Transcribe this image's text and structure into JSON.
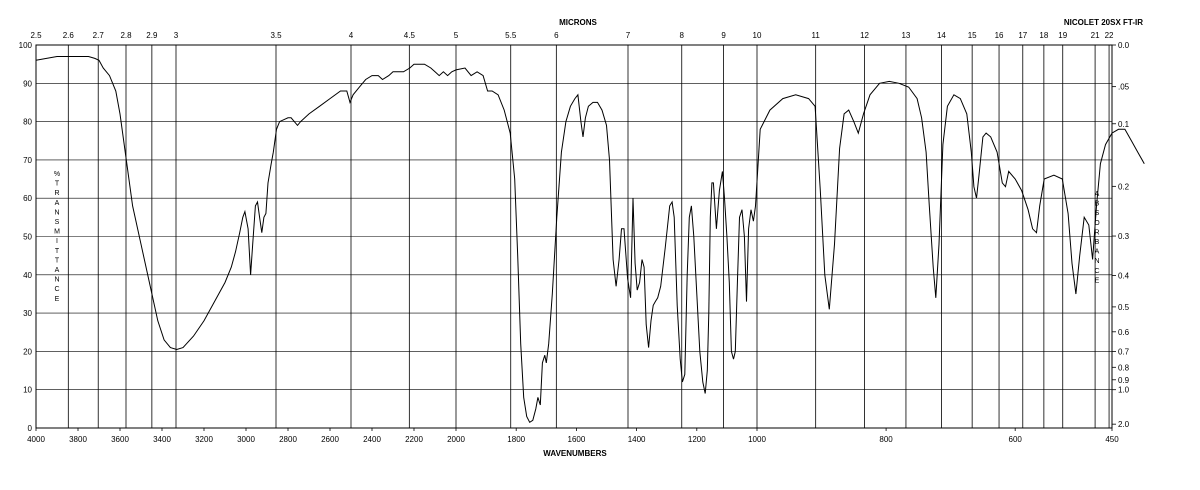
{
  "chart_data": {
    "type": "line",
    "title": "MICRONS",
    "instrument": "NICOLET 20SX FT-IR",
    "xlabel": "WAVENUMBERS",
    "ylabel_left": "%TRANSMITTANCE",
    "ylabel_right": "ABSORBANCE",
    "xlim": [
      4000,
      450
    ],
    "ylim": [
      0,
      100
    ],
    "grid": true,
    "x_ticks": [
      4000,
      3800,
      3600,
      3400,
      3200,
      3000,
      2800,
      2600,
      2400,
      2200,
      2000,
      1800,
      1600,
      1400,
      1200,
      1000,
      800,
      600,
      450
    ],
    "x_tick_labels": [
      "4000",
      "3800",
      "3600",
      "3400",
      "3200",
      "3000",
      "2800",
      "2600",
      "2400",
      "2200",
      "2000",
      "1800",
      "1600",
      "1400",
      "1200",
      "1000",
      "800",
      "600",
      "450"
    ],
    "y_ticks": [
      0,
      10,
      20,
      30,
      40,
      50,
      60,
      70,
      80,
      90,
      100
    ],
    "y_tick_labels": [
      "0",
      "10",
      "20",
      "30",
      "40",
      "50",
      "60",
      "70",
      "80",
      "90",
      "100"
    ],
    "micron_ticks": [
      {
        "um": 2.5,
        "label": "2.5"
      },
      {
        "um": 2.6,
        "label": "2.6"
      },
      {
        "um": 2.7,
        "label": "2.7"
      },
      {
        "um": 2.8,
        "label": "2.8"
      },
      {
        "um": 2.9,
        "label": "2.9"
      },
      {
        "um": 3.0,
        "label": "3"
      },
      {
        "um": 3.5,
        "label": "3.5"
      },
      {
        "um": 4.0,
        "label": "4"
      },
      {
        "um": 4.5,
        "label": "4.5"
      },
      {
        "um": 5.0,
        "label": "5"
      },
      {
        "um": 5.5,
        "label": "5.5"
      },
      {
        "um": 6.0,
        "label": "6"
      },
      {
        "um": 7.0,
        "label": "7"
      },
      {
        "um": 8.0,
        "label": "8"
      },
      {
        "um": 9.0,
        "label": "9"
      },
      {
        "um": 10.0,
        "label": "10"
      },
      {
        "um": 11.0,
        "label": "11"
      },
      {
        "um": 12.0,
        "label": "12"
      },
      {
        "um": 13.0,
        "label": "13"
      },
      {
        "um": 14.0,
        "label": "14"
      },
      {
        "um": 15.0,
        "label": "15"
      },
      {
        "um": 16.0,
        "label": "16"
      },
      {
        "um": 17.0,
        "label": "17"
      },
      {
        "um": 18.0,
        "label": "18"
      },
      {
        "um": 19.0,
        "label": "19"
      },
      {
        "um": 21.0,
        "label": "21"
      },
      {
        "um": 22.0,
        "label": "22"
      }
    ],
    "absorbance_ticks": [
      {
        "a": 0.0,
        "label": "0.0"
      },
      {
        "a": 0.05,
        "label": ".05"
      },
      {
        "a": 0.1,
        "label": "0.1"
      },
      {
        "a": 0.2,
        "label": "0.2"
      },
      {
        "a": 0.3,
        "label": "0.3"
      },
      {
        "a": 0.4,
        "label": "0.4"
      },
      {
        "a": 0.5,
        "label": "0.5"
      },
      {
        "a": 0.6,
        "label": "0.6"
      },
      {
        "a": 0.7,
        "label": "0.7"
      },
      {
        "a": 0.8,
        "label": "0.8"
      },
      {
        "a": 0.9,
        "label": "0.9"
      },
      {
        "a": 1.0,
        "label": "1.0"
      },
      {
        "a": 2.0,
        "label": "2.0"
      }
    ],
    "series": [
      {
        "points": [
          [
            4000,
            96
          ],
          [
            3950,
            96.5
          ],
          [
            3900,
            97
          ],
          [
            3850,
            97
          ],
          [
            3800,
            97
          ],
          [
            3750,
            97
          ],
          [
            3720,
            96.5
          ],
          [
            3700,
            96
          ],
          [
            3680,
            94
          ],
          [
            3650,
            92
          ],
          [
            3620,
            88
          ],
          [
            3600,
            82
          ],
          [
            3570,
            70
          ],
          [
            3540,
            58
          ],
          [
            3500,
            48
          ],
          [
            3460,
            38
          ],
          [
            3420,
            28
          ],
          [
            3390,
            23
          ],
          [
            3360,
            21
          ],
          [
            3330,
            20.5
          ],
          [
            3300,
            21
          ],
          [
            3250,
            24
          ],
          [
            3200,
            28
          ],
          [
            3150,
            33
          ],
          [
            3100,
            38
          ],
          [
            3070,
            42
          ],
          [
            3050,
            46
          ],
          [
            3030,
            51
          ],
          [
            3015,
            55
          ],
          [
            3005,
            56.5
          ],
          [
            2990,
            52
          ],
          [
            2978,
            40
          ],
          [
            2968,
            48
          ],
          [
            2955,
            58
          ],
          [
            2945,
            59
          ],
          [
            2935,
            55
          ],
          [
            2925,
            51
          ],
          [
            2915,
            55
          ],
          [
            2905,
            56
          ],
          [
            2895,
            64
          ],
          [
            2880,
            69
          ],
          [
            2870,
            72
          ],
          [
            2855,
            78
          ],
          [
            2840,
            80
          ],
          [
            2820,
            80.5
          ],
          [
            2800,
            81
          ],
          [
            2785,
            81
          ],
          [
            2770,
            80
          ],
          [
            2755,
            79
          ],
          [
            2740,
            80
          ],
          [
            2720,
            81
          ],
          [
            2700,
            82
          ],
          [
            2650,
            84
          ],
          [
            2600,
            86
          ],
          [
            2550,
            88
          ],
          [
            2520,
            88
          ],
          [
            2505,
            85
          ],
          [
            2490,
            87
          ],
          [
            2460,
            89
          ],
          [
            2430,
            91
          ],
          [
            2400,
            92
          ],
          [
            2370,
            92
          ],
          [
            2350,
            91
          ],
          [
            2320,
            92
          ],
          [
            2300,
            93
          ],
          [
            2250,
            93
          ],
          [
            2220,
            94
          ],
          [
            2200,
            95
          ],
          [
            2150,
            95
          ],
          [
            2120,
            94
          ],
          [
            2100,
            93
          ],
          [
            2080,
            92
          ],
          [
            2060,
            93
          ],
          [
            2040,
            92
          ],
          [
            2020,
            93
          ],
          [
            2000,
            93.5
          ],
          [
            1970,
            94
          ],
          [
            1950,
            92
          ],
          [
            1930,
            93
          ],
          [
            1910,
            92
          ],
          [
            1895,
            88
          ],
          [
            1880,
            88
          ],
          [
            1860,
            87
          ],
          [
            1840,
            83
          ],
          [
            1820,
            77
          ],
          [
            1805,
            65
          ],
          [
            1795,
            45
          ],
          [
            1785,
            22
          ],
          [
            1775,
            8
          ],
          [
            1765,
            3
          ],
          [
            1755,
            1.5
          ],
          [
            1745,
            2
          ],
          [
            1735,
            5
          ],
          [
            1728,
            8
          ],
          [
            1720,
            6
          ],
          [
            1713,
            17
          ],
          [
            1705,
            19
          ],
          [
            1700,
            17
          ],
          [
            1692,
            22
          ],
          [
            1680,
            35
          ],
          [
            1665,
            55
          ],
          [
            1650,
            72
          ],
          [
            1635,
            80
          ],
          [
            1620,
            84
          ],
          [
            1605,
            86
          ],
          [
            1595,
            87
          ],
          [
            1585,
            80
          ],
          [
            1578,
            76
          ],
          [
            1570,
            81
          ],
          [
            1560,
            84
          ],
          [
            1545,
            85
          ],
          [
            1530,
            85
          ],
          [
            1515,
            83
          ],
          [
            1500,
            79
          ],
          [
            1490,
            70
          ],
          [
            1478,
            44
          ],
          [
            1468,
            37
          ],
          [
            1458,
            44
          ],
          [
            1450,
            52
          ],
          [
            1442,
            52
          ],
          [
            1430,
            39
          ],
          [
            1420,
            34
          ],
          [
            1412,
            60
          ],
          [
            1405,
            43
          ],
          [
            1398,
            36
          ],
          [
            1390,
            38
          ],
          [
            1382,
            44
          ],
          [
            1375,
            42
          ],
          [
            1368,
            27
          ],
          [
            1360,
            21
          ],
          [
            1352,
            28
          ],
          [
            1345,
            32
          ],
          [
            1338,
            33
          ],
          [
            1330,
            34
          ],
          [
            1320,
            37
          ],
          [
            1305,
            47
          ],
          [
            1290,
            58
          ],
          [
            1282,
            59
          ],
          [
            1275,
            55
          ],
          [
            1265,
            32
          ],
          [
            1255,
            18
          ],
          [
            1248,
            12
          ],
          [
            1240,
            14
          ],
          [
            1232,
            40
          ],
          [
            1225,
            55
          ],
          [
            1218,
            58
          ],
          [
            1210,
            50
          ],
          [
            1200,
            35
          ],
          [
            1190,
            20
          ],
          [
            1180,
            12
          ],
          [
            1172,
            9
          ],
          [
            1165,
            15
          ],
          [
            1160,
            30
          ],
          [
            1155,
            55
          ],
          [
            1150,
            64
          ],
          [
            1145,
            64
          ],
          [
            1135,
            52
          ],
          [
            1125,
            62
          ],
          [
            1115,
            67
          ],
          [
            1108,
            60
          ],
          [
            1100,
            50
          ],
          [
            1092,
            38
          ],
          [
            1085,
            20
          ],
          [
            1078,
            18
          ],
          [
            1072,
            20
          ],
          [
            1065,
            38
          ],
          [
            1058,
            55
          ],
          [
            1050,
            57
          ],
          [
            1042,
            50
          ],
          [
            1035,
            33
          ],
          [
            1028,
            52
          ],
          [
            1020,
            57
          ],
          [
            1012,
            54
          ],
          [
            1005,
            58
          ],
          [
            995,
            78
          ],
          [
            980,
            83
          ],
          [
            960,
            86
          ],
          [
            940,
            87
          ],
          [
            920,
            86
          ],
          [
            910,
            84
          ],
          [
            902,
            62
          ],
          [
            895,
            40
          ],
          [
            888,
            31
          ],
          [
            880,
            48
          ],
          [
            872,
            73
          ],
          [
            865,
            82
          ],
          [
            858,
            83
          ],
          [
            850,
            80
          ],
          [
            843,
            77
          ],
          [
            835,
            82
          ],
          [
            825,
            87
          ],
          [
            810,
            90
          ],
          [
            795,
            90.5
          ],
          [
            780,
            90
          ],
          [
            765,
            89
          ],
          [
            752,
            86
          ],
          [
            745,
            81
          ],
          [
            738,
            72
          ],
          [
            733,
            58
          ],
          [
            727,
            42
          ],
          [
            723,
            34
          ],
          [
            718,
            48
          ],
          [
            712,
            74
          ],
          [
            705,
            84
          ],
          [
            695,
            87
          ],
          [
            685,
            86
          ],
          [
            675,
            82
          ],
          [
            668,
            72
          ],
          [
            664,
            63
          ],
          [
            660,
            60
          ],
          [
            656,
            66
          ],
          [
            650,
            76
          ],
          [
            645,
            77
          ],
          [
            638,
            76
          ],
          [
            628,
            72
          ],
          [
            620,
            64
          ],
          [
            615,
            63
          ],
          [
            610,
            67
          ],
          [
            600,
            65
          ],
          [
            590,
            62
          ],
          [
            580,
            57
          ],
          [
            573,
            52
          ],
          [
            567,
            51
          ],
          [
            562,
            58
          ],
          [
            555,
            65
          ],
          [
            540,
            66
          ],
          [
            527,
            65
          ],
          [
            518,
            56
          ],
          [
            512,
            43
          ],
          [
            506,
            35
          ],
          [
            500,
            45
          ],
          [
            493,
            55
          ],
          [
            486,
            53
          ],
          [
            480,
            44
          ],
          [
            474,
            58
          ],
          [
            468,
            69
          ],
          [
            460,
            74
          ],
          [
            450,
            77
          ],
          [
            440,
            78
          ],
          [
            430,
            78
          ],
          [
            420,
            75
          ],
          [
            410,
            72
          ],
          [
            400,
            69
          ]
        ]
      }
    ]
  }
}
